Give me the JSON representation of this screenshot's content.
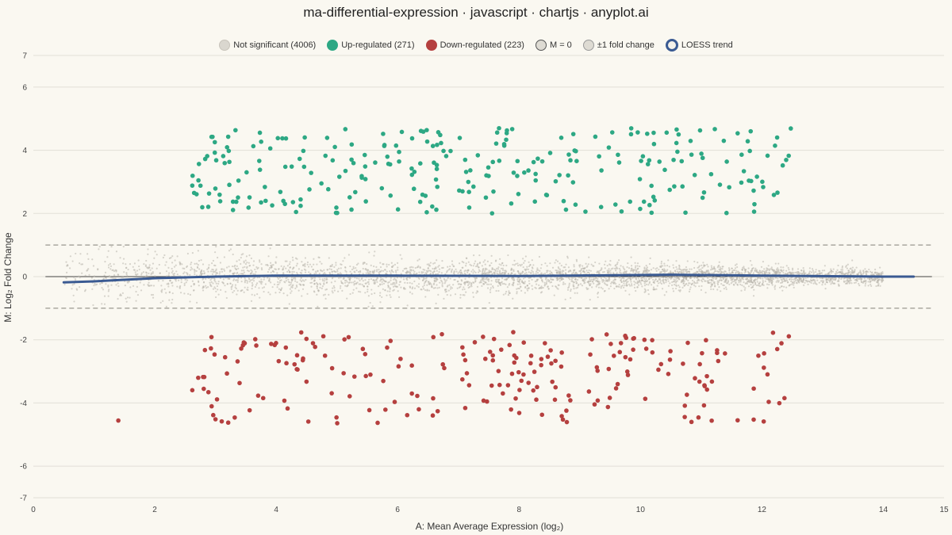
{
  "chart_data": {
    "type": "scatter",
    "title": "ma-differential-expression · javascript · chartjs · anyplot.ai",
    "xlabel": "A: Mean Average Expression (log₂)",
    "ylabel": "M: Log₂ Fold Change",
    "xlim": [
      0,
      15
    ],
    "ylim": [
      -7,
      7
    ],
    "x_ticks": [
      0,
      2,
      4,
      6,
      8,
      10,
      12,
      14,
      15
    ],
    "y_ticks": [
      7,
      6,
      4,
      2,
      0,
      -2,
      -4,
      -6,
      -7
    ],
    "grid": "horizontal",
    "legend_position": "top",
    "colors": {
      "not_significant": "#B8B4AC",
      "up": "#2DA884",
      "down": "#B5403F",
      "loess": "#3A5A92",
      "reference": "#9A978F"
    },
    "series": [
      {
        "name": "Not significant (4006)",
        "count": 4006,
        "x_range": [
          0.5,
          14.0
        ],
        "y_range": [
          -1,
          1
        ]
      },
      {
        "name": "Up-regulated (271)",
        "count": 271,
        "x_range": [
          2.5,
          12.5
        ],
        "y_range": [
          1.6,
          4.8
        ]
      },
      {
        "name": "Down-regulated (223)",
        "count": 223,
        "x_range": [
          1.4,
          12.5
        ],
        "y_range": [
          -4.8,
          -1.7
        ]
      },
      {
        "name": "M = 0",
        "y": 0
      },
      {
        "name": "±1 fold change",
        "y": [
          1,
          -1
        ]
      },
      {
        "name": "LOESS trend",
        "x": [
          0.5,
          1,
          2,
          3,
          4,
          6,
          8,
          10,
          10.5,
          12,
          14,
          14.5
        ],
        "y": [
          -0.18,
          -0.15,
          -0.05,
          0.0,
          0.03,
          0.03,
          0.02,
          0.05,
          0.06,
          0.03,
          0.0,
          0.0
        ]
      }
    ]
  }
}
